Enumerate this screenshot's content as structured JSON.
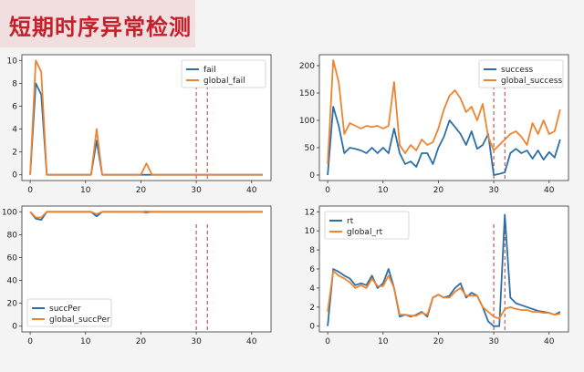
{
  "header": {
    "title": "短期时序异常检测"
  },
  "colors": {
    "series_primary": "#2d6ea6",
    "series_global": "#ec8430",
    "marker": "#b33a3a",
    "header_bg": "#f1dfdf",
    "title": "#c3202b"
  },
  "chart_data": [
    {
      "type": "line",
      "x": [
        0,
        1,
        2,
        3,
        4,
        5,
        6,
        7,
        8,
        9,
        10,
        11,
        12,
        13,
        14,
        15,
        16,
        17,
        18,
        19,
        20,
        21,
        22,
        23,
        24,
        25,
        26,
        27,
        28,
        29,
        30,
        31,
        32,
        33,
        34,
        35,
        36,
        37,
        38,
        39,
        40,
        41,
        42
      ],
      "xticks": [
        0,
        10,
        20,
        30,
        40
      ],
      "yticks": [
        0,
        2,
        4,
        6,
        8,
        10
      ],
      "xlim": [
        -1.5,
        43.5
      ],
      "ylim": [
        -0.5,
        10.5
      ],
      "vlines": [
        30,
        32
      ],
      "legend_position": "upper right",
      "series": [
        {
          "name": "fail",
          "color": "#2d6ea6",
          "values": [
            0,
            8,
            7,
            0,
            0,
            0,
            0,
            0,
            0,
            0,
            0,
            0,
            3,
            0,
            0,
            0,
            0,
            0,
            0,
            0,
            0,
            0,
            0,
            0,
            0,
            0,
            0,
            0,
            0,
            0,
            0,
            0,
            0,
            0,
            0,
            0,
            0,
            0,
            0,
            0,
            0,
            0,
            0
          ]
        },
        {
          "name": "global_fail",
          "color": "#ec8430",
          "values": [
            0,
            10,
            9,
            0,
            0,
            0,
            0,
            0,
            0,
            0,
            0,
            0,
            4,
            0,
            0,
            0,
            0,
            0,
            0,
            0,
            0,
            1,
            0,
            0,
            0,
            0,
            0,
            0,
            0,
            0,
            0,
            0,
            0,
            0,
            0,
            0,
            0,
            0,
            0,
            0,
            0,
            0,
            0
          ]
        }
      ]
    },
    {
      "type": "line",
      "x": [
        0,
        1,
        2,
        3,
        4,
        5,
        6,
        7,
        8,
        9,
        10,
        11,
        12,
        13,
        14,
        15,
        16,
        17,
        18,
        19,
        20,
        21,
        22,
        23,
        24,
        25,
        26,
        27,
        28,
        29,
        30,
        31,
        32,
        33,
        34,
        35,
        36,
        37,
        38,
        39,
        40,
        41,
        42
      ],
      "xticks": [
        0,
        10,
        20,
        30,
        40
      ],
      "yticks": [
        0,
        50,
        100,
        150,
        200
      ],
      "xlim": [
        -1.5,
        43.5
      ],
      "ylim": [
        -10,
        220
      ],
      "vlines": [
        30,
        32
      ],
      "legend_position": "upper right",
      "series": [
        {
          "name": "success",
          "color": "#2d6ea6",
          "values": [
            0,
            125,
            90,
            40,
            50,
            48,
            45,
            40,
            50,
            40,
            50,
            40,
            85,
            40,
            20,
            25,
            15,
            40,
            40,
            20,
            50,
            70,
            100,
            88,
            75,
            55,
            80,
            48,
            55,
            75,
            0,
            2,
            5,
            40,
            48,
            40,
            45,
            30,
            45,
            28,
            42,
            32,
            65
          ]
        },
        {
          "name": "global_success",
          "color": "#ec8430",
          "values": [
            20,
            210,
            170,
            75,
            95,
            90,
            85,
            90,
            88,
            90,
            85,
            90,
            170,
            55,
            40,
            55,
            45,
            65,
            55,
            60,
            85,
            120,
            145,
            155,
            140,
            115,
            125,
            100,
            130,
            70,
            45,
            55,
            65,
            75,
            80,
            70,
            55,
            95,
            75,
            100,
            75,
            80,
            120
          ]
        }
      ]
    },
    {
      "type": "line",
      "x": [
        0,
        1,
        2,
        3,
        4,
        5,
        6,
        7,
        8,
        9,
        10,
        11,
        12,
        13,
        14,
        15,
        16,
        17,
        18,
        19,
        20,
        21,
        22,
        23,
        24,
        25,
        26,
        27,
        28,
        29,
        30,
        31,
        32,
        33,
        34,
        35,
        36,
        37,
        38,
        39,
        40,
        41,
        42
      ],
      "xticks": [
        0,
        10,
        20,
        30,
        40
      ],
      "yticks": [
        0,
        20,
        40,
        60,
        80,
        100
      ],
      "xlim": [
        -1.5,
        43.5
      ],
      "ylim": [
        -5,
        105
      ],
      "vlines": [
        30,
        32
      ],
      "legend_position": "lower left",
      "series": [
        {
          "name": "succPer",
          "color": "#2d6ea6",
          "values": [
            100,
            94,
            93,
            100,
            100,
            100,
            100,
            100,
            100,
            100,
            100,
            100,
            96,
            100,
            100,
            100,
            100,
            100,
            100,
            100,
            100,
            100,
            100,
            100,
            100,
            100,
            100,
            100,
            100,
            100,
            100,
            100,
            100,
            100,
            100,
            100,
            100,
            100,
            100,
            100,
            100,
            100,
            100
          ]
        },
        {
          "name": "global_succPer",
          "color": "#ec8430",
          "values": [
            100,
            95,
            95,
            100,
            100,
            100,
            100,
            100,
            100,
            100,
            100,
            100,
            98,
            100,
            100,
            100,
            100,
            100,
            100,
            100,
            100,
            99,
            100,
            100,
            100,
            100,
            100,
            100,
            100,
            100,
            100,
            100,
            100,
            100,
            100,
            100,
            100,
            100,
            100,
            100,
            100,
            100,
            100
          ]
        }
      ]
    },
    {
      "type": "line",
      "x": [
        0,
        1,
        2,
        3,
        4,
        5,
        6,
        7,
        8,
        9,
        10,
        11,
        12,
        13,
        14,
        15,
        16,
        17,
        18,
        19,
        20,
        21,
        22,
        23,
        24,
        25,
        26,
        27,
        28,
        29,
        30,
        31,
        32,
        33,
        34,
        35,
        36,
        37,
        38,
        39,
        40,
        41,
        42
      ],
      "xticks": [
        0,
        10,
        20,
        30,
        40
      ],
      "yticks": [
        0,
        2,
        4,
        6,
        8,
        10,
        12
      ],
      "xlim": [
        -1.5,
        43.5
      ],
      "ylim": [
        -0.6,
        12.6
      ],
      "vlines": [
        30,
        32
      ],
      "legend_position": "upper left",
      "series": [
        {
          "name": "rt",
          "color": "#2d6ea6",
          "values": [
            0,
            6,
            5.7,
            5.3,
            5,
            4.3,
            4.5,
            4.3,
            5.3,
            4,
            4.5,
            6,
            4,
            1,
            1.2,
            1,
            1.2,
            1.5,
            1,
            3,
            3.3,
            3,
            3.2,
            4,
            4.5,
            3,
            3.5,
            3.2,
            2,
            0.5,
            0,
            0,
            11.7,
            3,
            2.4,
            2.2,
            2,
            1.8,
            1.6,
            1.5,
            1.4,
            1.2,
            1.5
          ]
        },
        {
          "name": "global_rt",
          "color": "#ec8430",
          "values": [
            1.5,
            5.8,
            5.3,
            5,
            4.6,
            4,
            4.3,
            4,
            5,
            4.2,
            4.2,
            5.3,
            4,
            1.2,
            1.2,
            1.1,
            1.1,
            1.4,
            1.2,
            3,
            3.3,
            3,
            3,
            3.6,
            4,
            3.2,
            3.2,
            3.2,
            2,
            1.5,
            1,
            0.8,
            1.8,
            2,
            1.8,
            1.7,
            1.7,
            1.5,
            1.5,
            1.4,
            1.4,
            1.2,
            1.3
          ]
        }
      ]
    }
  ]
}
